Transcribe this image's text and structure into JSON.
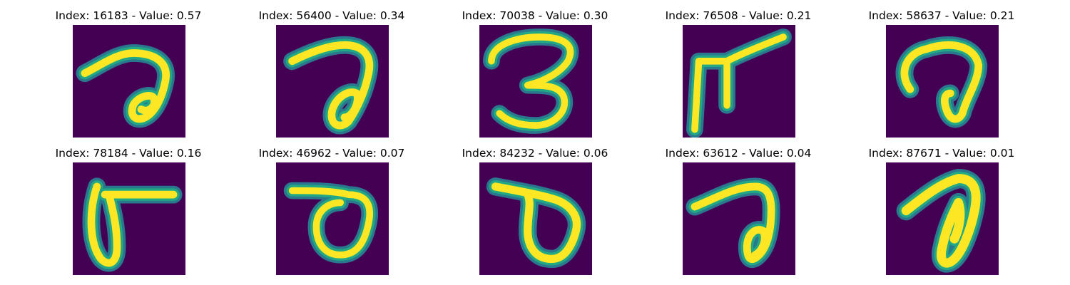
{
  "colors": {
    "background": "#440154",
    "stroke_outer": "#2a788e",
    "stroke_mid": "#22a884",
    "stroke_inner": "#fde725"
  },
  "panels": [
    {
      "index": "16183",
      "value": "0.57",
      "title": "Index: 16183 - Value: 0.57"
    },
    {
      "index": "56400",
      "value": "0.34",
      "title": "Index: 56400 - Value: 0.34"
    },
    {
      "index": "70038",
      "value": "0.30",
      "title": "Index: 70038 - Value: 0.30"
    },
    {
      "index": "76508",
      "value": "0.21",
      "title": "Index: 76508 - Value: 0.21"
    },
    {
      "index": "58637",
      "value": "0.21",
      "title": "Index: 58637 - Value: 0.21"
    },
    {
      "index": "78184",
      "value": "0.16",
      "title": "Index: 78184 - Value: 0.16"
    },
    {
      "index": "46962",
      "value": "0.07",
      "title": "Index: 46962 - Value: 0.07"
    },
    {
      "index": "84232",
      "value": "0.06",
      "title": "Index: 84232 - Value: 0.06"
    },
    {
      "index": "63612",
      "value": "0.04",
      "title": "Index: 63612 - Value: 0.04"
    },
    {
      "index": "87671",
      "value": "0.01",
      "title": "Index: 87671 - Value: 0.01"
    }
  ]
}
